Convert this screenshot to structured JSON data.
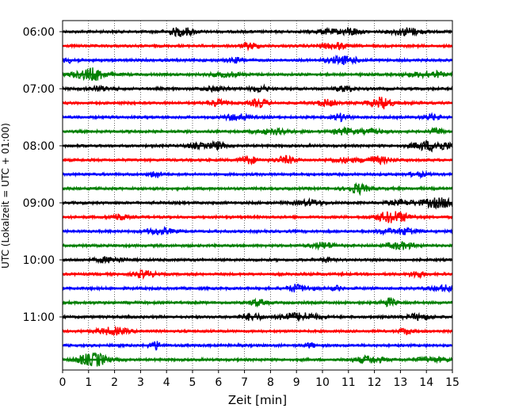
{
  "chart_data": {
    "type": "line",
    "title": "",
    "xlabel": "Zeit  [min]",
    "ylabel": "UTC (Lokalzeit = UTC + 01:00)",
    "xlim": [
      0,
      15
    ],
    "x_ticks": [
      "0",
      "1",
      "2",
      "3",
      "4",
      "5",
      "6",
      "7",
      "8",
      "9",
      "10",
      "11",
      "12",
      "13",
      "14",
      "15"
    ],
    "y_ticks": [
      "06:00",
      "07:00",
      "08:00",
      "09:00",
      "10:00",
      "11:00"
    ],
    "grid_x": true,
    "grid_y": false,
    "colors_cycle": [
      "#000000",
      "#ff0000",
      "#0000ff",
      "#008000"
    ],
    "series": [
      {
        "start": "06:00",
        "color": "#000000"
      },
      {
        "start": "06:15",
        "color": "#ff0000"
      },
      {
        "start": "06:30",
        "color": "#0000ff"
      },
      {
        "start": "06:45",
        "color": "#008000"
      },
      {
        "start": "07:00",
        "color": "#000000"
      },
      {
        "start": "07:15",
        "color": "#ff0000"
      },
      {
        "start": "07:30",
        "color": "#0000ff"
      },
      {
        "start": "07:45",
        "color": "#008000"
      },
      {
        "start": "08:00",
        "color": "#000000"
      },
      {
        "start": "08:15",
        "color": "#ff0000"
      },
      {
        "start": "08:30",
        "color": "#0000ff"
      },
      {
        "start": "08:45",
        "color": "#008000"
      },
      {
        "start": "09:00",
        "color": "#000000"
      },
      {
        "start": "09:15",
        "color": "#ff0000"
      },
      {
        "start": "09:30",
        "color": "#0000ff"
      },
      {
        "start": "09:45",
        "color": "#008000"
      },
      {
        "start": "10:00",
        "color": "#000000"
      },
      {
        "start": "10:15",
        "color": "#ff0000"
      },
      {
        "start": "10:30",
        "color": "#0000ff"
      },
      {
        "start": "10:45",
        "color": "#008000"
      },
      {
        "start": "11:00",
        "color": "#000000"
      },
      {
        "start": "11:15",
        "color": "#ff0000"
      },
      {
        "start": "11:30",
        "color": "#0000ff"
      },
      {
        "start": "11:45",
        "color": "#008000"
      }
    ]
  }
}
